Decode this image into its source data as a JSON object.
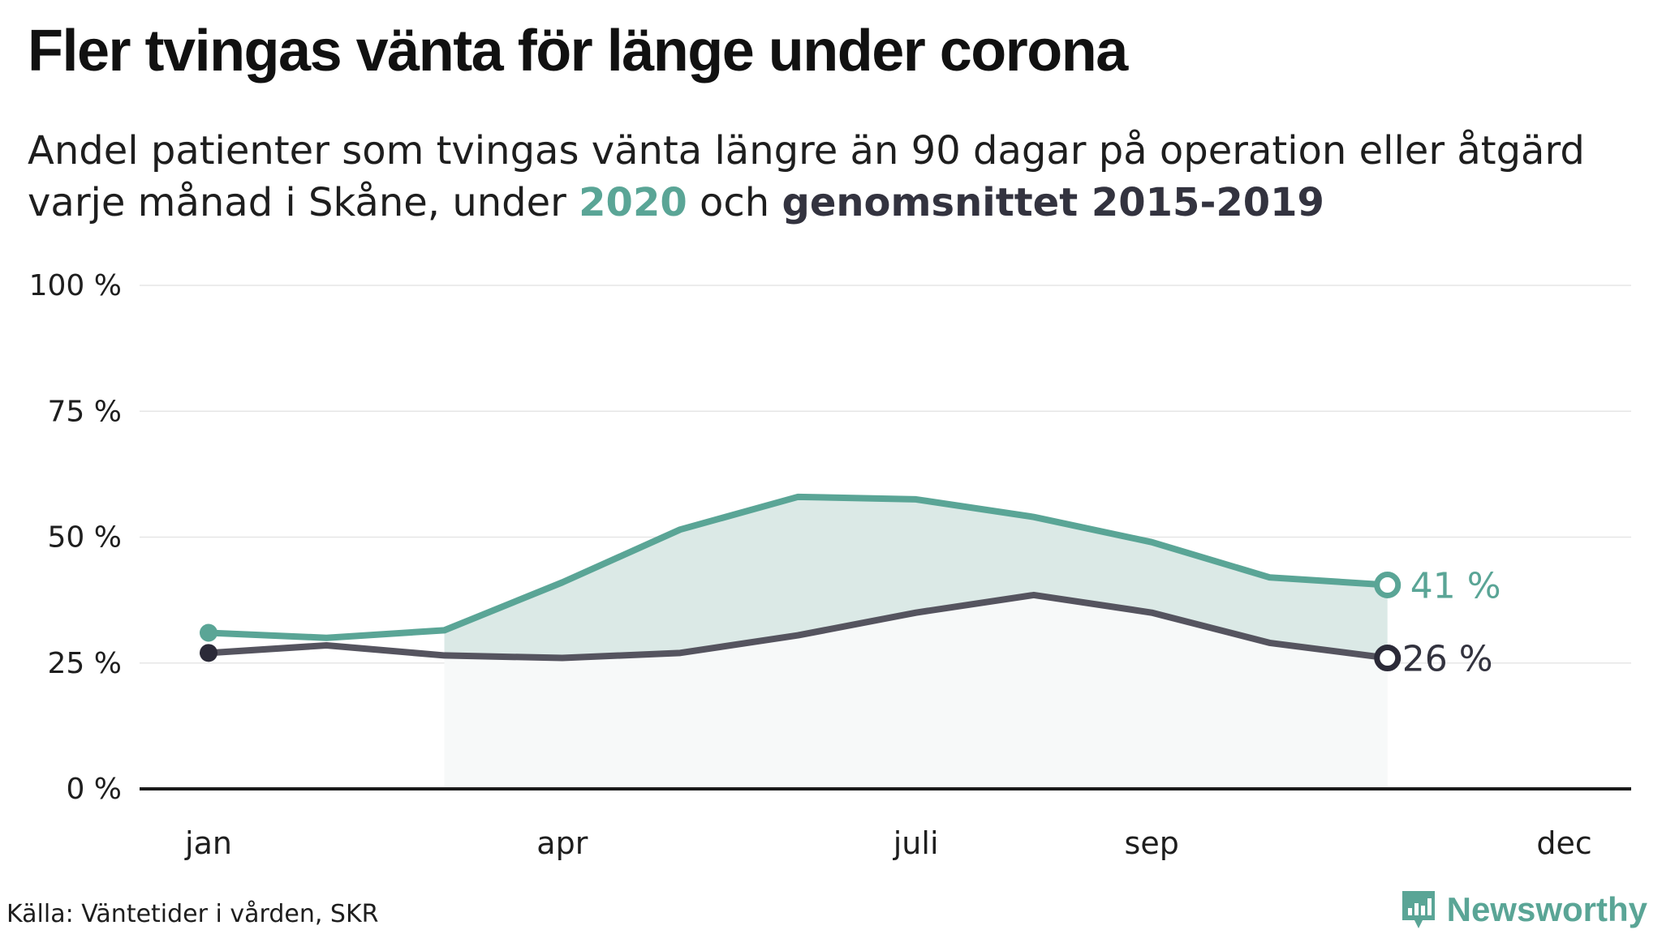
{
  "header": {
    "title": "Fler tvingas vänta för länge under corona",
    "subtitle_line1": "Andel patienter som tvingas vänta längre än 90 dagar på operation eller åtgärd",
    "subtitle_line2_prefix": "varje månad i Skåne, under",
    "subtitle_highlight_2020": "2020",
    "subtitle_connector": "och",
    "subtitle_highlight_avg": "genomsnittet 2015-2019"
  },
  "footer": {
    "source": "Källa: Väntetider i vården, SKR",
    "brand": "Newsworthy"
  },
  "colors": {
    "series_2020": "#5aa596",
    "series_avg": "#55545f",
    "avg_end_marker": "#2b2a38",
    "fill": "#dbe9e6",
    "grid": "#e6e6e6",
    "axis": "#1a1a1a"
  },
  "chart_data": {
    "type": "line",
    "x": [
      1,
      2,
      3,
      4,
      5,
      6,
      7,
      8,
      9,
      10,
      11,
      12
    ],
    "xlim": [
      1,
      12.5
    ],
    "x_ticks": [
      {
        "value": 1,
        "label": "jan"
      },
      {
        "value": 4,
        "label": "apr"
      },
      {
        "value": 7,
        "label": "juli"
      },
      {
        "value": 9,
        "label": "sep"
      },
      {
        "value": 12.5,
        "label": "dec"
      }
    ],
    "ylim": [
      0,
      100
    ],
    "y_ticks": [
      {
        "value": 0,
        "label": "0 %"
      },
      {
        "value": 25,
        "label": "25 %"
      },
      {
        "value": 50,
        "label": "50 %"
      },
      {
        "value": 75,
        "label": "75 %"
      },
      {
        "value": 100,
        "label": "100 %"
      }
    ],
    "grid": true,
    "shade_between_from_index": 2,
    "series": [
      {
        "key": "s2020",
        "values": [
          31,
          30,
          31.5,
          41,
          51.5,
          58,
          57.5,
          54,
          49,
          42,
          40.5,
          null
        ],
        "end_label": "41 %"
      },
      {
        "key": "avg",
        "values": [
          27,
          28.5,
          26.5,
          26,
          27,
          30.5,
          35,
          38.5,
          35,
          29,
          26,
          null
        ],
        "end_label": "26 %"
      }
    ]
  }
}
